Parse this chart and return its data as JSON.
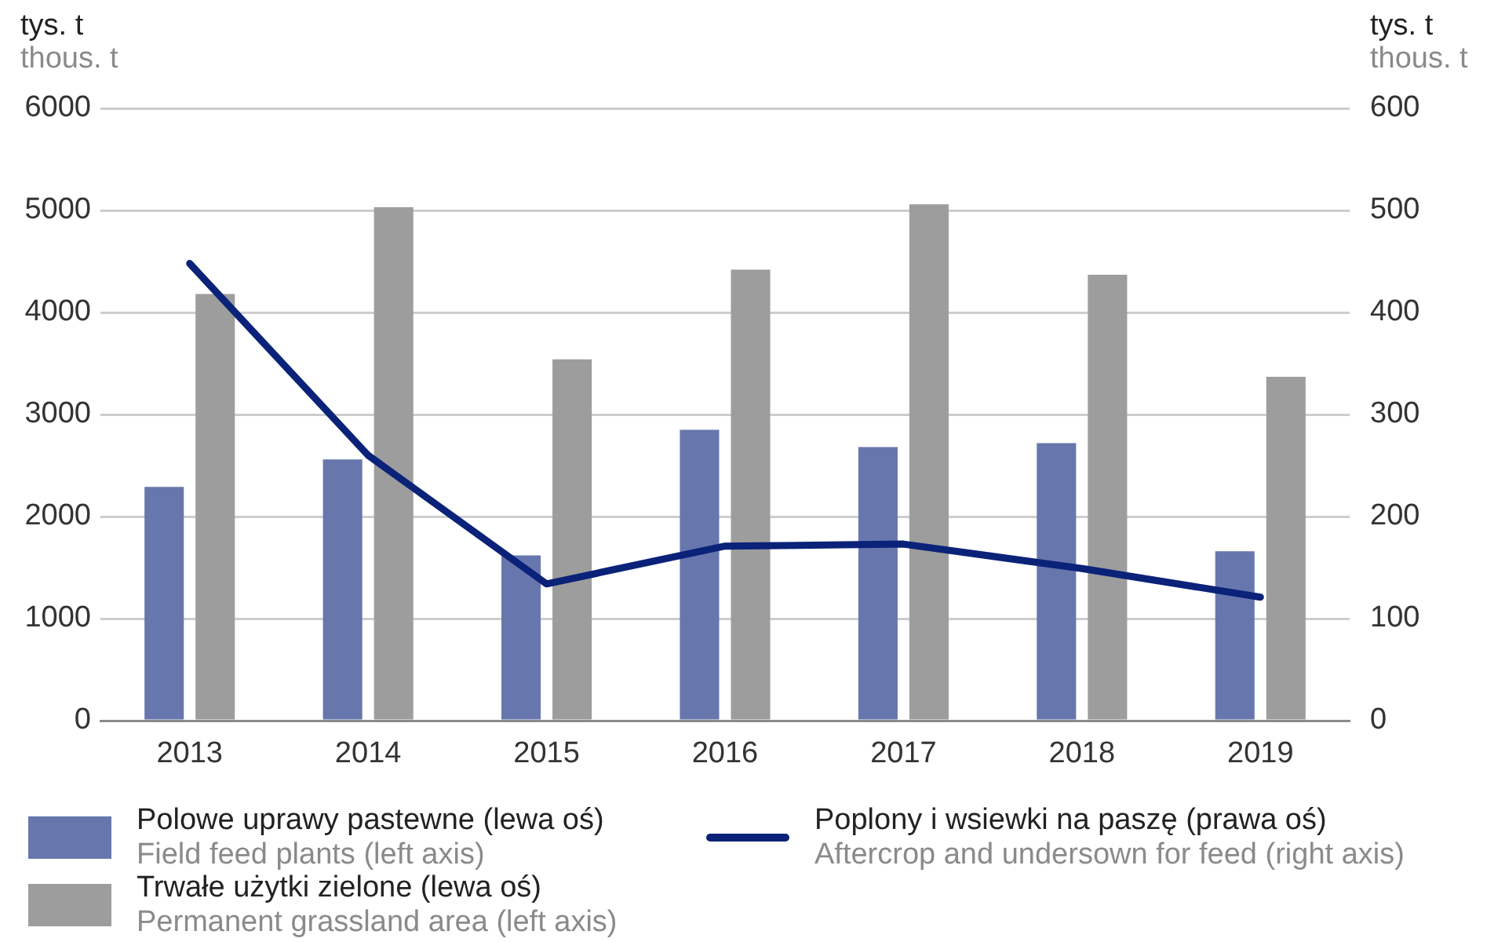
{
  "chart_data": {
    "type": "bar",
    "categories": [
      "2013",
      "2014",
      "2015",
      "2016",
      "2017",
      "2018",
      "2019"
    ],
    "ylabel": "tys. t\nthous. t",
    "y2label": "tys. t\nthous. t",
    "ylim": [
      0,
      6000
    ],
    "yticks": [
      0,
      1000,
      2000,
      3000,
      4000,
      5000,
      6000
    ],
    "y2lim": [
      0,
      600
    ],
    "y2ticks": [
      0,
      100,
      200,
      300,
      400,
      500,
      600
    ],
    "series": [
      {
        "name": "Polowe uprawy pastewne (lewa oś)\nField feed plants (left axis)",
        "color": "#6777ad",
        "values": [
          2290,
          2560,
          1620,
          2850,
          2680,
          2720,
          1660
        ]
      },
      {
        "name": "Trwałe użytki zielone (lewa oś)\nPermanent grassland area (left axis)",
        "color": "#9c9d9c",
        "values": [
          4180,
          5030,
          3540,
          4420,
          5060,
          4370,
          3370
        ]
      },
      {
        "name": "Poplony i wsiewki na paszę (prawa oś)\nAftercrop and undersown for feed (right axis)",
        "type": "line",
        "axis": "y2",
        "color": "#0b2279",
        "values": [
          448,
          260,
          134,
          171,
          173,
          149,
          121
        ]
      }
    ],
    "grid": "y",
    "legend": "bottom",
    "marker": "none"
  }
}
